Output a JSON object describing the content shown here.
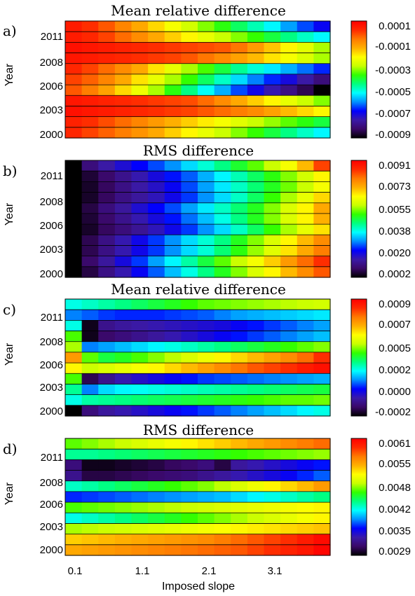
{
  "x_axis": {
    "label": "Imposed slope",
    "ticks": [
      "0.1",
      "1.1",
      "2.1",
      "3.1"
    ],
    "tick_values": [
      0.1,
      1.1,
      2.1,
      3.1
    ],
    "range": [
      0.1,
      4.1
    ]
  },
  "colormap": [
    "#000000",
    "#3a0868",
    "#3a1aa8",
    "#0000ff",
    "#0090ff",
    "#00ffff",
    "#00ff80",
    "#30ff00",
    "#c8ff00",
    "#ffff00",
    "#ffb000",
    "#ff7a00",
    "#ff2a00",
    "#ff0000"
  ],
  "chart_data": [
    {
      "type": "heatmap",
      "panel": "a)",
      "title": "Mean relative difference",
      "ylabel": "Year",
      "y_ticks": [
        "2011",
        "2008",
        "2006",
        "2003",
        "2000"
      ],
      "colorbar": {
        "ticks": [
          "0.0001",
          "-0.0001",
          "-0.0003",
          "-0.0005",
          "-0.0007",
          "-0.0009"
        ],
        "range": [
          -0.0009,
          0.0001
        ]
      },
      "rows_top_to_bottom": [
        [
          0.95,
          0.92,
          0.88,
          0.83,
          0.78,
          0.73,
          0.68,
          0.63,
          0.58,
          0.53,
          0.48,
          0.43,
          0.38,
          0.32,
          0.27,
          0.22
        ],
        [
          0.95,
          0.93,
          0.9,
          0.86,
          0.82,
          0.78,
          0.74,
          0.7,
          0.66,
          0.62,
          0.58,
          0.54,
          0.5,
          0.46,
          0.42,
          0.38
        ],
        [
          0.97,
          0.96,
          0.95,
          0.94,
          0.93,
          0.92,
          0.91,
          0.9,
          0.89,
          0.88,
          0.85,
          0.8,
          0.75,
          0.7,
          0.65,
          0.6
        ],
        [
          0.96,
          0.95,
          0.94,
          0.93,
          0.92,
          0.91,
          0.9,
          0.88,
          0.85,
          0.82,
          0.79,
          0.76,
          0.72,
          0.68,
          0.64,
          0.6
        ],
        [
          0.93,
          0.9,
          0.86,
          0.82,
          0.78,
          0.72,
          0.66,
          0.6,
          0.55,
          0.5,
          0.45,
          0.41,
          0.37,
          0.33,
          0.29,
          0.25
        ],
        [
          0.9,
          0.87,
          0.83,
          0.78,
          0.72,
          0.66,
          0.6,
          0.54,
          0.48,
          0.42,
          0.36,
          0.3,
          0.25,
          0.2,
          0.15,
          0.1
        ],
        [
          0.88,
          0.84,
          0.79,
          0.73,
          0.67,
          0.6,
          0.53,
          0.46,
          0.39,
          0.33,
          0.27,
          0.21,
          0.16,
          0.11,
          0.06,
          0.0
        ],
        [
          0.96,
          0.95,
          0.94,
          0.93,
          0.92,
          0.91,
          0.9,
          0.89,
          0.86,
          0.82,
          0.78,
          0.74,
          0.7,
          0.66,
          0.62,
          0.58
        ],
        [
          0.97,
          0.96,
          0.95,
          0.94,
          0.93,
          0.92,
          0.91,
          0.9,
          0.88,
          0.86,
          0.84,
          0.82,
          0.79,
          0.76,
          0.73,
          0.7
        ],
        [
          0.94,
          0.92,
          0.89,
          0.86,
          0.83,
          0.8,
          0.77,
          0.74,
          0.71,
          0.68,
          0.65,
          0.62,
          0.59,
          0.56,
          0.53,
          0.5
        ],
        [
          0.93,
          0.9,
          0.87,
          0.84,
          0.81,
          0.78,
          0.74,
          0.7,
          0.66,
          0.62,
          0.58,
          0.54,
          0.5,
          0.46,
          0.42,
          0.38
        ]
      ]
    },
    {
      "type": "heatmap",
      "panel": "b)",
      "title": "RMS difference",
      "ylabel": "Year",
      "y_ticks": [
        "2011",
        "2008",
        "2006",
        "2003",
        "2000"
      ],
      "colorbar": {
        "ticks": [
          "0.0091",
          "0.0073",
          "0.0055",
          "0.0038",
          "0.0020",
          "0.0002"
        ],
        "range": [
          0.0002,
          0.0091
        ]
      },
      "rows_top_to_bottom": [
        [
          0.0,
          0.1,
          0.15,
          0.19,
          0.23,
          0.27,
          0.31,
          0.36,
          0.41,
          0.46,
          0.51,
          0.56,
          0.62,
          0.68,
          0.76,
          0.9
        ],
        [
          0.0,
          0.04,
          0.08,
          0.12,
          0.16,
          0.2,
          0.24,
          0.28,
          0.33,
          0.38,
          0.43,
          0.48,
          0.53,
          0.58,
          0.63,
          0.7
        ],
        [
          0.0,
          0.03,
          0.07,
          0.11,
          0.15,
          0.18,
          0.22,
          0.27,
          0.32,
          0.37,
          0.42,
          0.47,
          0.52,
          0.57,
          0.62,
          0.68
        ],
        [
          0.0,
          0.03,
          0.07,
          0.11,
          0.14,
          0.17,
          0.21,
          0.26,
          0.31,
          0.36,
          0.42,
          0.48,
          0.54,
          0.6,
          0.66,
          0.73
        ],
        [
          0.0,
          0.05,
          0.1,
          0.14,
          0.19,
          0.23,
          0.27,
          0.32,
          0.37,
          0.42,
          0.47,
          0.52,
          0.58,
          0.64,
          0.7,
          0.78
        ],
        [
          0.0,
          0.04,
          0.08,
          0.12,
          0.16,
          0.2,
          0.24,
          0.29,
          0.34,
          0.4,
          0.46,
          0.52,
          0.58,
          0.64,
          0.7,
          0.77
        ],
        [
          0.0,
          0.03,
          0.07,
          0.1,
          0.13,
          0.17,
          0.21,
          0.26,
          0.31,
          0.36,
          0.42,
          0.48,
          0.54,
          0.6,
          0.66,
          0.72
        ],
        [
          0.0,
          0.06,
          0.11,
          0.16,
          0.21,
          0.26,
          0.31,
          0.36,
          0.41,
          0.46,
          0.52,
          0.58,
          0.64,
          0.7,
          0.76,
          0.82
        ],
        [
          0.0,
          0.06,
          0.11,
          0.16,
          0.21,
          0.26,
          0.31,
          0.36,
          0.41,
          0.47,
          0.53,
          0.59,
          0.65,
          0.72,
          0.78,
          0.84
        ],
        [
          0.0,
          0.08,
          0.14,
          0.2,
          0.26,
          0.32,
          0.38,
          0.44,
          0.5,
          0.56,
          0.62,
          0.68,
          0.74,
          0.8,
          0.86,
          0.92
        ],
        [
          0.0,
          0.05,
          0.11,
          0.16,
          0.22,
          0.28,
          0.34,
          0.4,
          0.46,
          0.52,
          0.58,
          0.64,
          0.7,
          0.76,
          0.82,
          0.88
        ]
      ]
    },
    {
      "type": "heatmap",
      "panel": "c)",
      "title": "Mean relative difference",
      "ylabel": "Year",
      "y_ticks": [
        "2011",
        "2008",
        "2006",
        "2003",
        "2000"
      ],
      "colorbar": {
        "ticks": [
          "0.0009",
          "0.0007",
          "0.0005",
          "0.0002",
          "0.0000",
          "-0.0002"
        ],
        "range": [
          -0.0002,
          0.0009
        ]
      },
      "rows_top_to_bottom": [
        [
          0.4,
          0.42,
          0.44,
          0.46,
          0.48,
          0.5,
          0.52,
          0.54,
          0.56,
          0.57,
          0.58,
          0.59,
          0.6,
          0.61,
          0.62,
          0.63
        ],
        [
          0.3,
          0.28,
          0.26,
          0.25,
          0.25,
          0.25,
          0.26,
          0.27,
          0.28,
          0.3,
          0.32,
          0.33,
          0.34,
          0.35,
          0.36,
          0.37
        ],
        [
          0.4,
          0.02,
          0.12,
          0.14,
          0.15,
          0.16,
          0.17,
          0.18,
          0.19,
          0.2,
          0.22,
          0.24,
          0.26,
          0.28,
          0.3,
          0.32
        ],
        [
          0.55,
          0.02,
          0.08,
          0.1,
          0.12,
          0.14,
          0.16,
          0.18,
          0.2,
          0.22,
          0.24,
          0.26,
          0.28,
          0.3,
          0.32,
          0.34
        ],
        [
          0.6,
          0.3,
          0.32,
          0.34,
          0.36,
          0.38,
          0.4,
          0.42,
          0.44,
          0.46,
          0.48,
          0.5,
          0.52,
          0.54,
          0.56,
          0.58
        ],
        [
          0.8,
          0.56,
          0.5,
          0.52,
          0.55,
          0.58,
          0.61,
          0.64,
          0.67,
          0.7,
          0.73,
          0.76,
          0.79,
          0.82,
          0.86,
          0.92
        ],
        [
          0.7,
          0.62,
          0.64,
          0.66,
          0.68,
          0.7,
          0.73,
          0.76,
          0.79,
          0.82,
          0.85,
          0.88,
          0.9,
          0.92,
          0.95,
          0.97
        ],
        [
          0.55,
          0.06,
          0.12,
          0.16,
          0.18,
          0.2,
          0.22,
          0.24,
          0.26,
          0.27,
          0.28,
          0.29,
          0.3,
          0.31,
          0.32,
          0.33
        ],
        [
          0.45,
          0.3,
          0.36,
          0.38,
          0.39,
          0.4,
          0.41,
          0.42,
          0.43,
          0.44,
          0.45,
          0.46,
          0.47,
          0.48,
          0.49,
          0.5
        ],
        [
          0.4,
          0.44,
          0.45,
          0.46,
          0.47,
          0.48,
          0.49,
          0.5,
          0.51,
          0.52,
          0.53,
          0.54,
          0.55,
          0.56,
          0.56,
          0.57
        ],
        [
          0.0,
          0.1,
          0.14,
          0.16,
          0.18,
          0.2,
          0.22,
          0.24,
          0.26,
          0.28,
          0.3,
          0.32,
          0.34,
          0.36,
          0.38,
          0.4
        ]
      ]
    },
    {
      "type": "heatmap",
      "panel": "d)",
      "title": "RMS difference",
      "ylabel": "Year",
      "y_ticks": [
        "2011",
        "2008",
        "2006",
        "2003",
        "2000"
      ],
      "colorbar": {
        "ticks": [
          "0.0061",
          "0.0055",
          "0.0048",
          "0.0042",
          "0.0035",
          "0.0029"
        ],
        "range": [
          0.0029,
          0.0061
        ]
      },
      "rows_top_to_bottom": [
        [
          0.56,
          0.58,
          0.6,
          0.62,
          0.64,
          0.66,
          0.68,
          0.7,
          0.72,
          0.74,
          0.76,
          0.78,
          0.8,
          0.82,
          0.84,
          0.86
        ],
        [
          0.45,
          0.45,
          0.46,
          0.47,
          0.48,
          0.49,
          0.5,
          0.51,
          0.52,
          0.53,
          0.54,
          0.55,
          0.56,
          0.57,
          0.58,
          0.59
        ],
        [
          0.1,
          0.02,
          0.02,
          0.03,
          0.04,
          0.05,
          0.07,
          0.08,
          0.1,
          0.05,
          0.14,
          0.16,
          0.18,
          0.2,
          0.22,
          0.24
        ],
        [
          0.12,
          0.05,
          0.05,
          0.06,
          0.07,
          0.08,
          0.09,
          0.1,
          0.12,
          0.14,
          0.16,
          0.18,
          0.2,
          0.22,
          0.25,
          0.28
        ],
        [
          0.42,
          0.44,
          0.46,
          0.48,
          0.5,
          0.52,
          0.54,
          0.56,
          0.58,
          0.61,
          0.64,
          0.67,
          0.7,
          0.73,
          0.76,
          0.8
        ],
        [
          0.25,
          0.26,
          0.27,
          0.28,
          0.29,
          0.3,
          0.31,
          0.32,
          0.33,
          0.34,
          0.36,
          0.38,
          0.4,
          0.42,
          0.44,
          0.46
        ],
        [
          0.55,
          0.56,
          0.57,
          0.58,
          0.59,
          0.6,
          0.61,
          0.62,
          0.63,
          0.64,
          0.65,
          0.66,
          0.67,
          0.68,
          0.69,
          0.7
        ],
        [
          0.4,
          0.42,
          0.44,
          0.46,
          0.48,
          0.5,
          0.52,
          0.54,
          0.56,
          0.58,
          0.6,
          0.62,
          0.64,
          0.66,
          0.68,
          0.7
        ],
        [
          0.6,
          0.61,
          0.62,
          0.63,
          0.64,
          0.65,
          0.66,
          0.67,
          0.68,
          0.69,
          0.7,
          0.71,
          0.72,
          0.73,
          0.74,
          0.75
        ],
        [
          0.74,
          0.75,
          0.76,
          0.77,
          0.78,
          0.79,
          0.8,
          0.81,
          0.82,
          0.84,
          0.86,
          0.88,
          0.9,
          0.92,
          0.95,
          0.98
        ],
        [
          0.78,
          0.79,
          0.8,
          0.81,
          0.82,
          0.83,
          0.84,
          0.85,
          0.86,
          0.87,
          0.88,
          0.9,
          0.92,
          0.94,
          0.96,
          0.99
        ]
      ]
    }
  ]
}
